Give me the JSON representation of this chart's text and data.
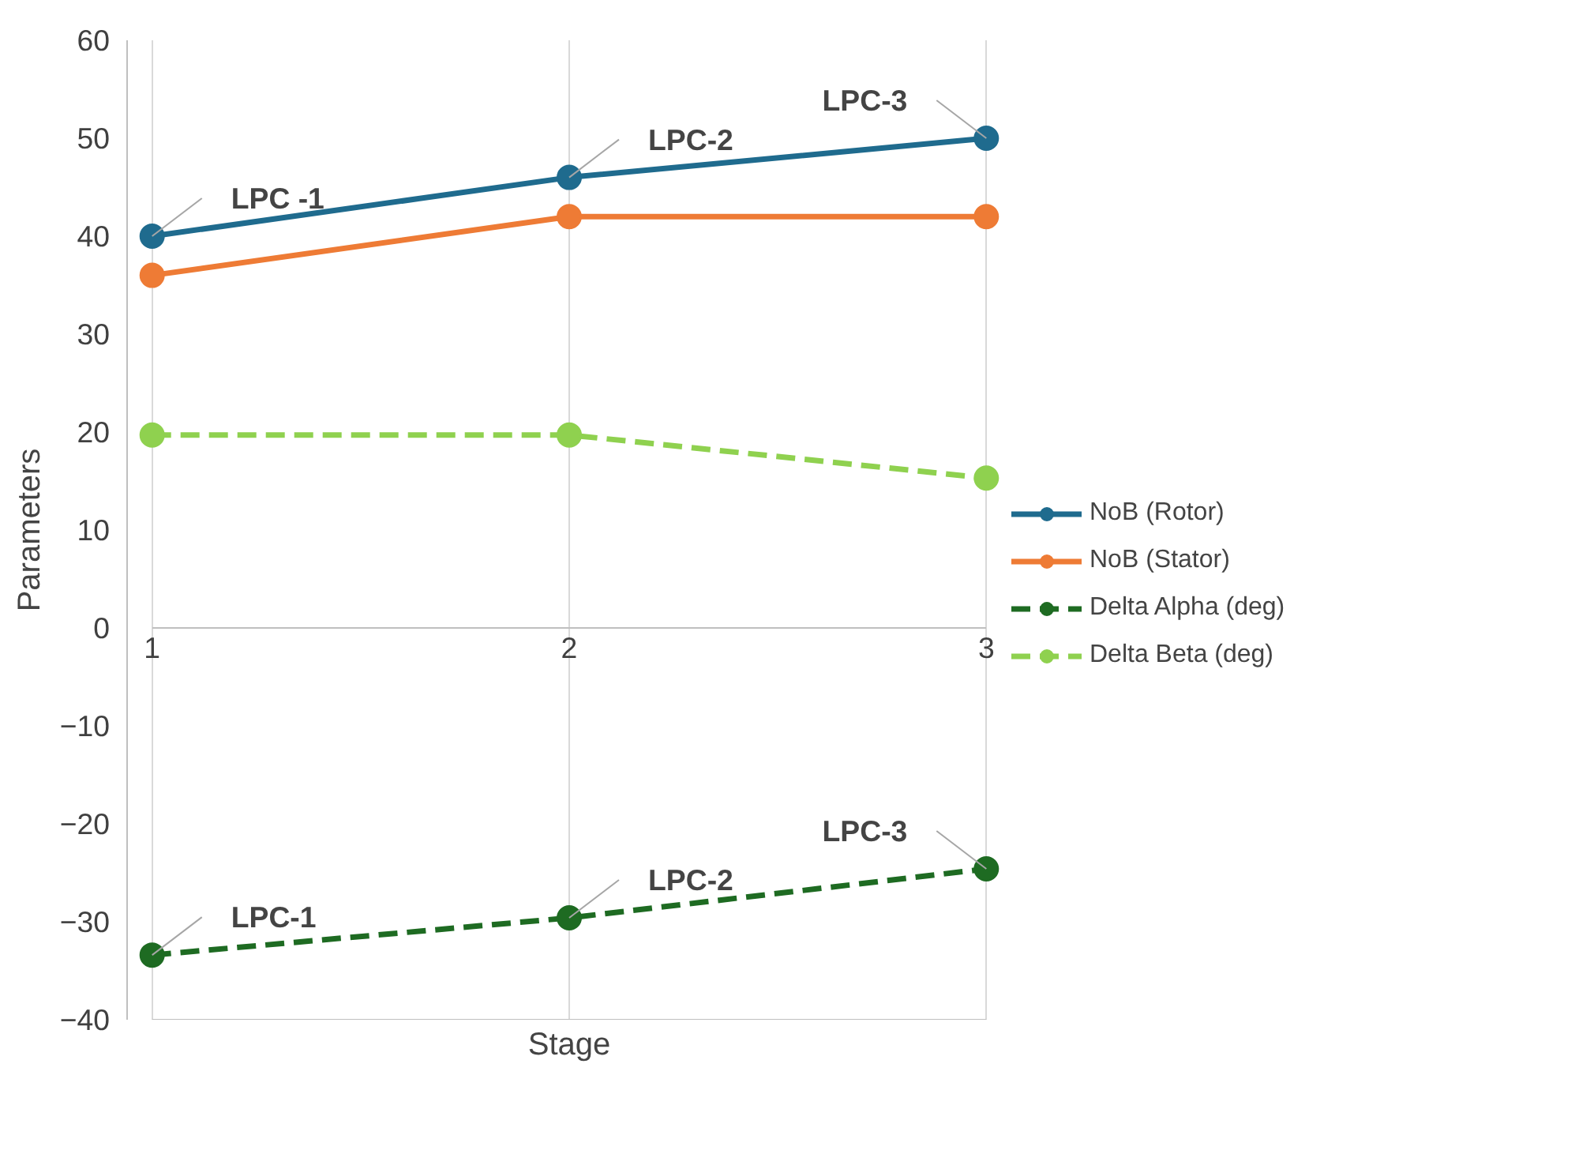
{
  "chart_data": {
    "type": "line",
    "xlabel": "Stage",
    "ylabel": "Parameters",
    "x": [
      1,
      2,
      3
    ],
    "series": [
      {
        "name": "NoB (Rotor)",
        "color": "#1f6b8e",
        "values": [
          40,
          46,
          50
        ],
        "line_style": "solid"
      },
      {
        "name": "NoB (Stator)",
        "color": "#ee7b35",
        "values": [
          36,
          42,
          42
        ],
        "line_style": "solid"
      },
      {
        "name": "Delta Alpha (deg)",
        "color": "#1e6b22",
        "values": [
          -33.4,
          -29.6,
          -24.6
        ],
        "line_style": "dashed"
      },
      {
        "name": "Delta Beta (deg)",
        "color": "#8fd14f",
        "values": [
          19.7,
          19.7,
          15.3
        ],
        "line_style": "dashed"
      }
    ],
    "xlim": [
      1,
      3
    ],
    "xticks": [
      1,
      2,
      3
    ],
    "ylim": [
      -40,
      60
    ],
    "yticks": [
      -40,
      -30,
      -20,
      -10,
      0,
      10,
      20,
      30,
      40,
      50,
      60
    ],
    "grid": "x",
    "legend": "right",
    "marker": "circle",
    "annotations": [
      {
        "text": "LPC -1",
        "x": 1,
        "y": 40
      },
      {
        "text": "LPC-2",
        "x": 2,
        "y": 46
      },
      {
        "text": "LPC-3",
        "x": 3,
        "y": 50
      },
      {
        "text": "LPC-1",
        "x": 1,
        "y": -33.4
      },
      {
        "text": "LPC-2",
        "x": 2,
        "y": -29.6
      },
      {
        "text": "LPC-3",
        "x": 3,
        "y": -24.6
      }
    ]
  }
}
